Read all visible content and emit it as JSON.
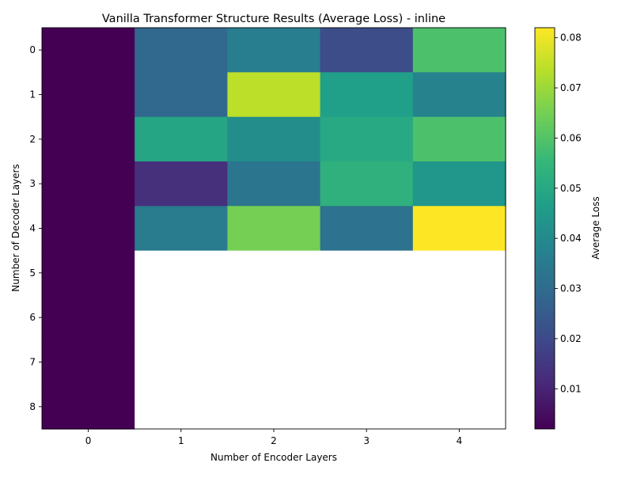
{
  "chart_data": {
    "type": "heatmap",
    "title": "Vanilla Transformer Structure Results (Average Loss) - inline",
    "xlabel": "Number of Encoder Layers",
    "ylabel": "Number of Decoder Layers",
    "x_categories": [
      "0",
      "1",
      "2",
      "3",
      "4"
    ],
    "y_categories": [
      "0",
      "1",
      "2",
      "3",
      "4",
      "5",
      "6",
      "7",
      "8"
    ],
    "values": [
      [
        0.002,
        0.029,
        0.036,
        0.021,
        0.059
      ],
      [
        0.002,
        0.029,
        0.074,
        0.047,
        0.038
      ],
      [
        0.002,
        0.049,
        0.041,
        0.05,
        0.059
      ],
      [
        0.002,
        0.013,
        0.033,
        0.053,
        0.044
      ],
      [
        0.002,
        0.035,
        0.065,
        0.032,
        0.082
      ],
      [
        0.002,
        null,
        null,
        null,
        null
      ],
      [
        0.002,
        null,
        null,
        null,
        null
      ],
      [
        0.002,
        null,
        null,
        null,
        null
      ],
      [
        0.002,
        null,
        null,
        null,
        null
      ]
    ],
    "colormap": "viridis",
    "colorbar": {
      "label": "Average Loss",
      "min": 0.002,
      "max": 0.082,
      "ticks": [
        0.01,
        0.02,
        0.03,
        0.04,
        0.05,
        0.06,
        0.07,
        0.08
      ]
    },
    "missing_color": "#ffffff"
  }
}
